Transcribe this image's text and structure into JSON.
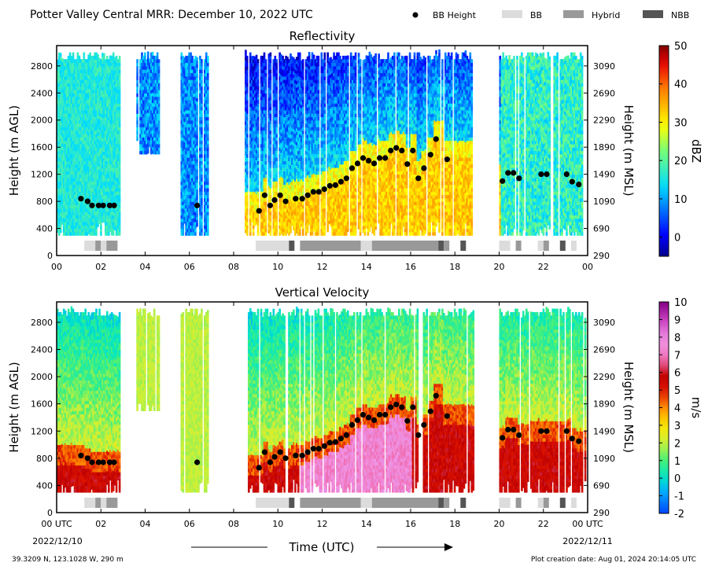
{
  "header": {
    "title": "Potter Valley Central MRR:  December 10, 2022 UTC",
    "legend": [
      {
        "label": "BB Height",
        "kind": "dot",
        "color": "#000000"
      },
      {
        "label": "BB",
        "kind": "patch",
        "color": "#dcdcdc"
      },
      {
        "label": "Hybrid",
        "kind": "patch",
        "color": "#999999"
      },
      {
        "label": "NBB",
        "kind": "patch",
        "color": "#555555"
      }
    ]
  },
  "footer": {
    "location": "39.3209 N, 123.1028 W, 290 m",
    "created": "Plot creation date: Aug 01, 2024 20:14:05 UTC",
    "xlabel": "Time (UTC)",
    "start_date": "2022/12/10",
    "end_date": "2022/12/11"
  },
  "chart_data": [
    {
      "type": "heatmap",
      "title": "Reflectivity",
      "ylabel": "Height (m AGL)",
      "y2label": "Height (m MSL)",
      "colorbar_label": "dBZ",
      "colorbar_ticks": [
        "50",
        "40",
        "30",
        "20",
        "10",
        "0"
      ],
      "colorbar_range": [
        -5,
        50
      ],
      "xlim": [
        0,
        24
      ],
      "ylim": [
        0,
        3100
      ],
      "xticks": [
        "00",
        "02",
        "04",
        "06",
        "08",
        "10",
        "12",
        "14",
        "16",
        "18",
        "20",
        "22",
        "00"
      ],
      "yticks": [
        "0",
        "400",
        "800",
        "1200",
        "1600",
        "2000",
        "2400",
        "2800"
      ],
      "y2ticks": [
        "290",
        "690",
        "1090",
        "1490",
        "1890",
        "2290",
        "2690",
        "3090"
      ]
    },
    {
      "type": "heatmap",
      "title": "Vertical Velocity",
      "ylabel": "Height (m AGL)",
      "y2label": "Height (m MSL)",
      "colorbar_label": "m/s",
      "colorbar_ticks": [
        "10",
        "9",
        "8",
        "7",
        "6",
        "5",
        "4",
        "3",
        "2",
        "1",
        "0",
        "-1",
        "-2"
      ],
      "colorbar_range": [
        -2,
        10
      ],
      "xlim": [
        0,
        24
      ],
      "ylim": [
        0,
        3100
      ],
      "xticks": [
        "00 UTC",
        "02",
        "04",
        "06",
        "08",
        "10",
        "12",
        "14",
        "16",
        "18",
        "20",
        "22",
        "00 UTC"
      ],
      "yticks": [
        "0",
        "400",
        "800",
        "1200",
        "1600",
        "2000",
        "2400",
        "2800"
      ],
      "y2ticks": [
        "290",
        "690",
        "1090",
        "1490",
        "1890",
        "2290",
        "2690",
        "3090"
      ]
    }
  ],
  "bb_height": [
    [
      1.1,
      840
    ],
    [
      1.4,
      800
    ],
    [
      1.6,
      740
    ],
    [
      1.9,
      740
    ],
    [
      2.1,
      740
    ],
    [
      2.4,
      740
    ],
    [
      2.6,
      740
    ],
    [
      6.35,
      740
    ],
    [
      9.15,
      660
    ],
    [
      9.4,
      890
    ],
    [
      9.65,
      740
    ],
    [
      9.85,
      820
    ],
    [
      10.1,
      890
    ],
    [
      10.35,
      800
    ],
    [
      10.8,
      840
    ],
    [
      11.1,
      840
    ],
    [
      11.35,
      890
    ],
    [
      11.6,
      940
    ],
    [
      11.85,
      940
    ],
    [
      12.1,
      980
    ],
    [
      12.35,
      1030
    ],
    [
      12.6,
      1040
    ],
    [
      12.85,
      1090
    ],
    [
      13.1,
      1140
    ],
    [
      13.35,
      1290
    ],
    [
      13.6,
      1360
    ],
    [
      13.85,
      1440
    ],
    [
      14.1,
      1400
    ],
    [
      14.35,
      1360
    ],
    [
      14.6,
      1440
    ],
    [
      14.85,
      1440
    ],
    [
      15.1,
      1550
    ],
    [
      15.35,
      1590
    ],
    [
      15.6,
      1550
    ],
    [
      15.85,
      1350
    ],
    [
      16.1,
      1550
    ],
    [
      16.35,
      1140
    ],
    [
      16.6,
      1290
    ],
    [
      16.9,
      1490
    ],
    [
      17.15,
      1720
    ],
    [
      17.65,
      1420
    ],
    [
      20.15,
      1100
    ],
    [
      20.4,
      1220
    ],
    [
      20.65,
      1220
    ],
    [
      20.9,
      1140
    ],
    [
      21.9,
      1200
    ],
    [
      22.15,
      1200
    ],
    [
      23.05,
      1200
    ],
    [
      23.3,
      1090
    ],
    [
      23.6,
      1050
    ]
  ],
  "precip_type_bars": [
    {
      "type": "BB",
      "start": 1.25,
      "end": 1.75
    },
    {
      "type": "Hybrid",
      "start": 1.75,
      "end": 2.0
    },
    {
      "type": "BB",
      "start": 2.0,
      "end": 2.25
    },
    {
      "type": "Hybrid",
      "start": 2.25,
      "end": 2.75
    },
    {
      "type": "BB",
      "start": 9.0,
      "end": 10.5
    },
    {
      "type": "NBB",
      "start": 10.5,
      "end": 10.75
    },
    {
      "type": "Hybrid",
      "start": 11.0,
      "end": 13.75
    },
    {
      "type": "BB",
      "start": 13.75,
      "end": 14.25
    },
    {
      "type": "Hybrid",
      "start": 14.25,
      "end": 17.25
    },
    {
      "type": "NBB",
      "start": 17.25,
      "end": 17.5
    },
    {
      "type": "Hybrid",
      "start": 17.5,
      "end": 17.75
    },
    {
      "type": "NBB",
      "start": 18.25,
      "end": 18.5
    },
    {
      "type": "BB",
      "start": 20.0,
      "end": 20.5
    },
    {
      "type": "Hybrid",
      "start": 20.75,
      "end": 21.0
    },
    {
      "type": "BB",
      "start": 21.75,
      "end": 22.0
    },
    {
      "type": "Hybrid",
      "start": 22.0,
      "end": 22.25
    },
    {
      "type": "NBB",
      "start": 22.75,
      "end": 23.0
    },
    {
      "type": "BB",
      "start": 23.25,
      "end": 23.5
    }
  ],
  "echo_periods": [
    {
      "start": 0.0,
      "end": 2.8,
      "top": 3000,
      "bottom": 300
    },
    {
      "start": 3.6,
      "end": 4.6,
      "top": 3000,
      "bottom": 1500
    },
    {
      "start": 5.6,
      "end": 6.8,
      "top": 3000,
      "bottom": 300
    },
    {
      "start": 8.5,
      "end": 18.8,
      "top": 3000,
      "bottom": 300
    },
    {
      "start": 20.0,
      "end": 23.9,
      "top": 3000,
      "bottom": 300
    }
  ]
}
